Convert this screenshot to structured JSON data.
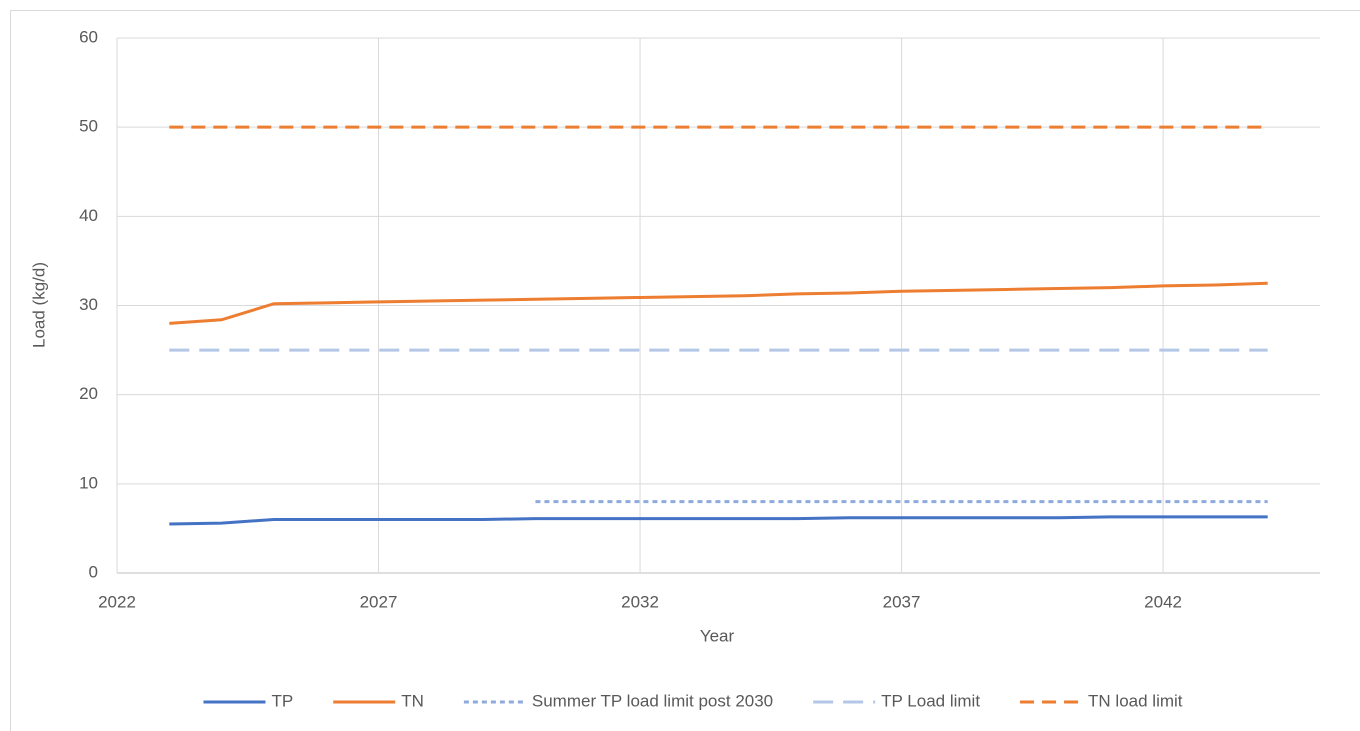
{
  "chart_data": {
    "type": "line",
    "x_label": "Year",
    "y_label": "Load (kg/d)",
    "x": [
      2023,
      2024,
      2025,
      2026,
      2027,
      2028,
      2029,
      2030,
      2031,
      2032,
      2033,
      2034,
      2035,
      2036,
      2037,
      2038,
      2039,
      2040,
      2041,
      2042,
      2043,
      2044
    ],
    "series": [
      {
        "name": "TP",
        "color": "#4472c4",
        "dash": "solid",
        "values": [
          5.5,
          5.6,
          6.0,
          6.0,
          6.0,
          6.0,
          6.0,
          6.1,
          6.1,
          6.1,
          6.1,
          6.1,
          6.1,
          6.2,
          6.2,
          6.2,
          6.2,
          6.2,
          6.3,
          6.3,
          6.3,
          6.3
        ]
      },
      {
        "name": "TN",
        "color": "#ed7d31",
        "dash": "solid",
        "values": [
          28.0,
          28.4,
          30.2,
          30.3,
          30.4,
          30.5,
          30.6,
          30.7,
          30.8,
          30.9,
          31.0,
          31.1,
          31.3,
          31.4,
          31.6,
          31.7,
          31.8,
          31.9,
          32.0,
          32.2,
          32.3,
          32.5
        ]
      },
      {
        "name": "Summer TP load limit post 2030",
        "color": "#8faadc",
        "dash": "dot",
        "values": [
          null,
          null,
          null,
          null,
          null,
          null,
          null,
          8,
          8,
          8,
          8,
          8,
          8,
          8,
          8,
          8,
          8,
          8,
          8,
          8,
          8,
          8
        ]
      },
      {
        "name": "TP Load limit",
        "color": "#b4c7e7",
        "dash": "longdash",
        "values": [
          25,
          25,
          25,
          25,
          25,
          25,
          25,
          25,
          25,
          25,
          25,
          25,
          25,
          25,
          25,
          25,
          25,
          25,
          25,
          25,
          25,
          25
        ]
      },
      {
        "name": "TN load limit",
        "color": "#ed7d31",
        "dash": "dash",
        "values": [
          50,
          50,
          50,
          50,
          50,
          50,
          50,
          50,
          50,
          50,
          50,
          50,
          50,
          50,
          50,
          50,
          50,
          50,
          50,
          50,
          50,
          50
        ]
      }
    ],
    "xlim": [
      2022,
      2045
    ],
    "xticks": [
      2022,
      2027,
      2032,
      2037,
      2042
    ],
    "ylim": [
      0,
      60
    ],
    "yticks": [
      0,
      10,
      20,
      30,
      40,
      50,
      60
    ],
    "grid": true,
    "legend": "bottom"
  }
}
